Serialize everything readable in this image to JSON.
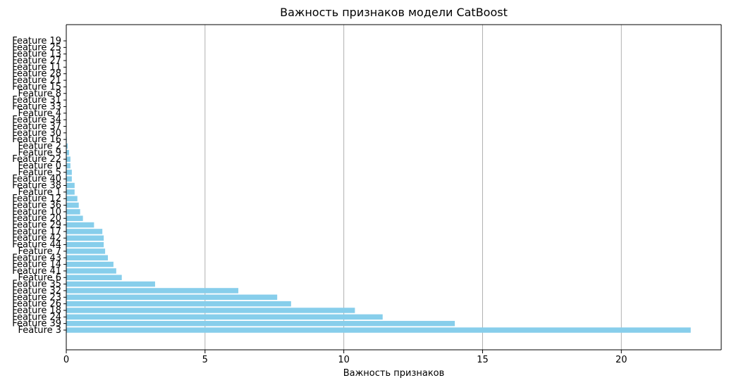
{
  "chart_data": {
    "type": "bar",
    "orientation": "horizontal",
    "title": "Важность признаков модели CatBoost",
    "xlabel": "Важность признаков",
    "ylabel": "",
    "xlim": [
      0,
      23.6
    ],
    "xticks": [
      0,
      5,
      10,
      15,
      20
    ],
    "grid": "x",
    "bar_color": "#87ceeb",
    "categories": [
      "Feature 3",
      "Feature 39",
      "Feature 24",
      "Feature 18",
      "Feature 26",
      "Feature 23",
      "Feature 32",
      "Feature 35",
      "Feature 6",
      "Feature 41",
      "Feature 14",
      "Feature 43",
      "Feature 7",
      "Feature 44",
      "Feature 42",
      "Feature 17",
      "Feature 29",
      "Feature 20",
      "Feature 10",
      "Feature 36",
      "Feature 12",
      "Feature 1",
      "Feature 38",
      "Feature 40",
      "Feature 5",
      "Feature 0",
      "Feature 22",
      "Feature 9",
      "Feature 2",
      "Feature 16",
      "Feature 30",
      "Feature 37",
      "Feature 34",
      "Feature 4",
      "Feature 33",
      "Feature 31",
      "Feature 8",
      "Feature 15",
      "Feature 21",
      "Feature 28",
      "Feature 11",
      "Feature 27",
      "Feature 13",
      "Feature 25",
      "Feature 19"
    ],
    "values": [
      22.5,
      14.0,
      11.4,
      10.4,
      8.1,
      7.6,
      6.2,
      3.2,
      2.0,
      1.8,
      1.7,
      1.5,
      1.4,
      1.35,
      1.35,
      1.3,
      1.0,
      0.6,
      0.5,
      0.45,
      0.4,
      0.3,
      0.3,
      0.2,
      0.2,
      0.15,
      0.15,
      0.1,
      0.05,
      0.02,
      0.0,
      0.0,
      0.0,
      0.0,
      0.0,
      0.0,
      0.0,
      0.0,
      0.0,
      0.0,
      0.0,
      0.0,
      0.0,
      0.0,
      0.0
    ]
  }
}
